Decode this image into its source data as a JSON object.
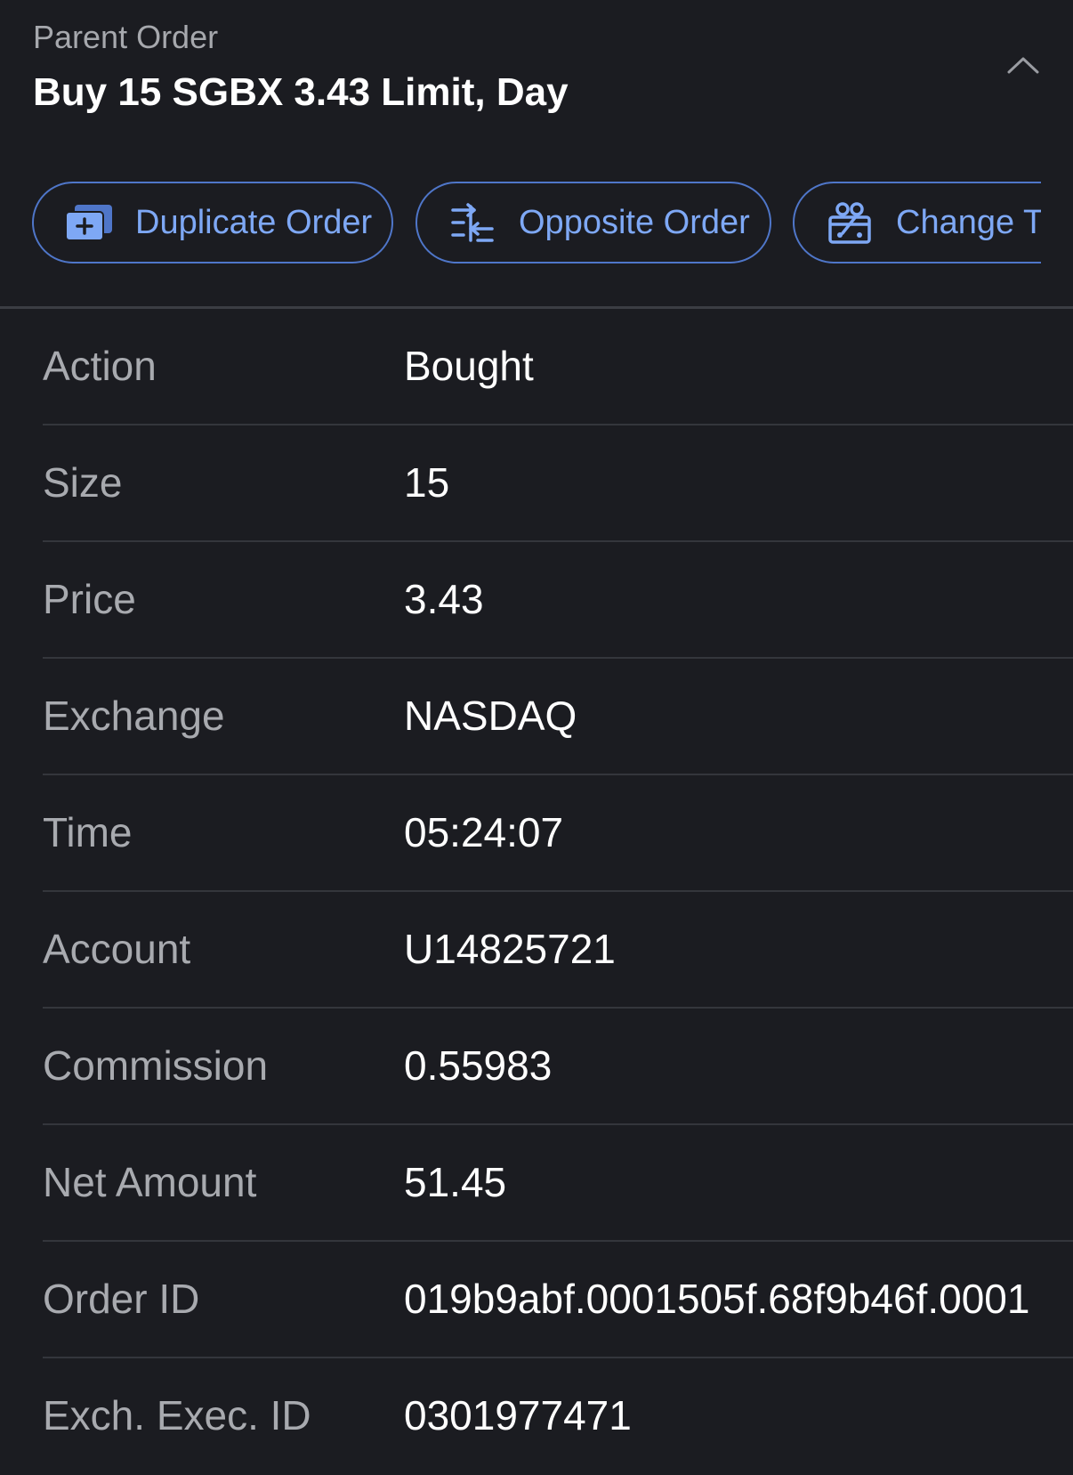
{
  "header": {
    "eyebrow": "Parent Order",
    "title": "Buy 15 SGBX 3.43 Limit, Day",
    "collapse_icon": "chevron-up-icon"
  },
  "actions": [
    {
      "label": "Duplicate Order",
      "icon": "duplicate-icon"
    },
    {
      "label": "Opposite Order",
      "icon": "opposite-icon"
    },
    {
      "label": "Change Ta",
      "icon": "change-icon"
    }
  ],
  "colors": {
    "background": "#1b1c21",
    "accent": "#7ea8f5",
    "accent_border": "#4f76c9",
    "label": "#a8aaaf",
    "divider": "#34363c"
  },
  "details": [
    {
      "label": "Action",
      "value": "Bought"
    },
    {
      "label": "Size",
      "value": "15"
    },
    {
      "label": "Price",
      "value": "3.43"
    },
    {
      "label": "Exchange",
      "value": "NASDAQ"
    },
    {
      "label": "Time",
      "value": "05:24:07"
    },
    {
      "label": "Account",
      "value": "U14825721"
    },
    {
      "label": "Commission",
      "value": "0.55983"
    },
    {
      "label": "Net Amount",
      "value": "51.45"
    },
    {
      "label": "Order ID",
      "value": "019b9abf.0001505f.68f9b46f.0001"
    },
    {
      "label": "Exch. Exec. ID",
      "value": "0301977471"
    }
  ]
}
